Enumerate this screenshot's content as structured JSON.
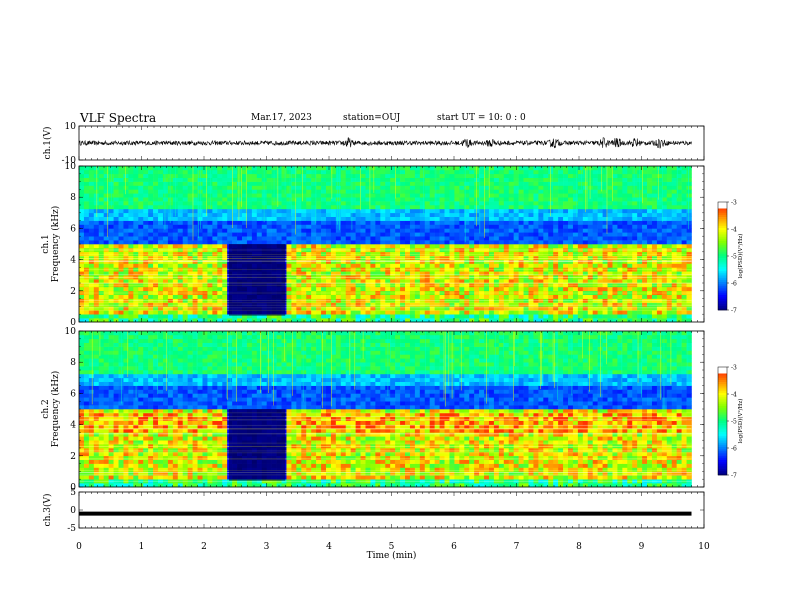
{
  "header": {
    "title": "VLF Spectra",
    "date": "Mar.17, 2023",
    "station": "station=OUJ",
    "start_ut": "start  UT =   10: 0  : 0"
  },
  "chart_data": [
    {
      "type": "line",
      "name": "ch1-waveform",
      "ylabel": "ch.1(V)",
      "ylim": [
        -10,
        10
      ],
      "yticks": [
        "10",
        "-10"
      ],
      "description_level": {
        "baseline": 0,
        "typical_amplitude": 1.3,
        "burst_times_min": [
          4.3,
          6.2,
          6.6,
          7.6,
          8.4,
          8.6,
          8.9,
          9.3
        ]
      }
    },
    {
      "type": "heatmap",
      "name": "ch1-spectrogram",
      "ylabel": "ch.1\nFrequency (kHz)",
      "ylim": [
        0,
        10
      ],
      "yticks": [
        "0",
        "2",
        "4",
        "6",
        "8",
        "10"
      ],
      "xlim": [
        0,
        10
      ],
      "data_end_min": 9.8,
      "gap_interval_min": [
        2.4,
        3.3
      ],
      "colorbar": {
        "label": "log(PSD)(V²/Hz)",
        "range": [
          -7,
          -3
        ],
        "ticks": [
          "-3",
          "-4",
          "-5",
          "-6",
          "-7"
        ]
      }
    },
    {
      "type": "heatmap",
      "name": "ch2-spectrogram",
      "ylabel": "ch.2\nFrequency (kHz)",
      "ylim": [
        0,
        10
      ],
      "yticks": [
        "0",
        "2",
        "4",
        "6",
        "8",
        "10"
      ],
      "xlim": [
        0,
        10
      ],
      "data_end_min": 9.8,
      "gap_interval_min": [
        2.4,
        3.3
      ],
      "colorbar": {
        "label": "log(PSD)(V²/Hz)",
        "range": [
          -7,
          -3
        ],
        "ticks": [
          "-3",
          "-4",
          "-5",
          "-6",
          "-7"
        ]
      }
    },
    {
      "type": "line",
      "name": "ch3-waveform",
      "ylabel": "ch.3(V)",
      "ylim": [
        -5,
        5
      ],
      "yticks": [
        "5",
        "0",
        "-5"
      ],
      "constant_value": -1,
      "data_end_min": 9.8
    }
  ],
  "xaxis": {
    "label": "Time  (min)",
    "range": [
      0,
      10
    ],
    "ticks": [
      "0",
      "1",
      "2",
      "3",
      "4",
      "5",
      "6",
      "7",
      "8",
      "9",
      "10"
    ]
  },
  "colors": {
    "cmap": [
      "#000080",
      "#0000ff",
      "#0080ff",
      "#00ffff",
      "#00ff80",
      "#80ff00",
      "#ffff00",
      "#ff8000",
      "#ff0000",
      "#ffffff"
    ]
  }
}
